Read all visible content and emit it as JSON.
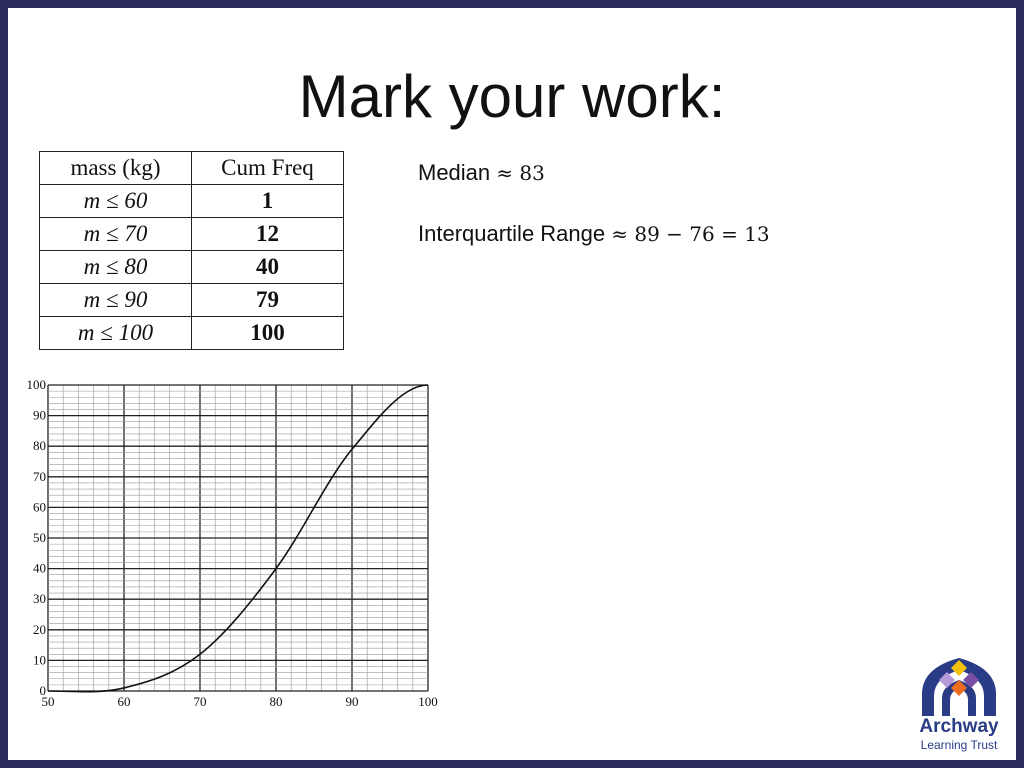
{
  "slide": {
    "title": "Mark your work:"
  },
  "table": {
    "headers": [
      "mass (kg)",
      "Cum Freq"
    ],
    "rows": [
      {
        "mass": "m ≤ 60",
        "cum": "1"
      },
      {
        "mass": "m ≤ 70",
        "cum": "12"
      },
      {
        "mass": "m ≤ 80",
        "cum": "40"
      },
      {
        "mass": "m ≤ 90",
        "cum": "79"
      },
      {
        "mass": "m ≤ 100",
        "cum": "100"
      }
    ]
  },
  "answers": {
    "median_label": "Median",
    "median_expr": "≈ 83",
    "iqr_label": "Interquartile Range",
    "iqr_expr": "≈ 89 − 76 = 13"
  },
  "chart_data": {
    "type": "line",
    "x": [
      50,
      60,
      70,
      80,
      90,
      100
    ],
    "series": [
      {
        "values": [
          0,
          1,
          12,
          40,
          79,
          100
        ]
      }
    ],
    "xlim": [
      50,
      100
    ],
    "ylim": [
      0,
      100
    ],
    "xticks": [
      "50",
      "60",
      "70",
      "80",
      "90",
      "100"
    ],
    "yticks": [
      "0",
      "10",
      "20",
      "30",
      "40",
      "50",
      "60",
      "70",
      "80",
      "90",
      "100"
    ],
    "grid": true,
    "title": "",
    "xlabel": "",
    "ylabel": ""
  },
  "logo": {
    "name_line1": "Archway",
    "name_line2": "Learning Trust",
    "colors": {
      "blue": "#2a3c86",
      "yellow": "#f4c20d",
      "orange": "#ec6d1d",
      "purple": "#7a4fa3",
      "light_purple": "#b49ad6"
    }
  }
}
